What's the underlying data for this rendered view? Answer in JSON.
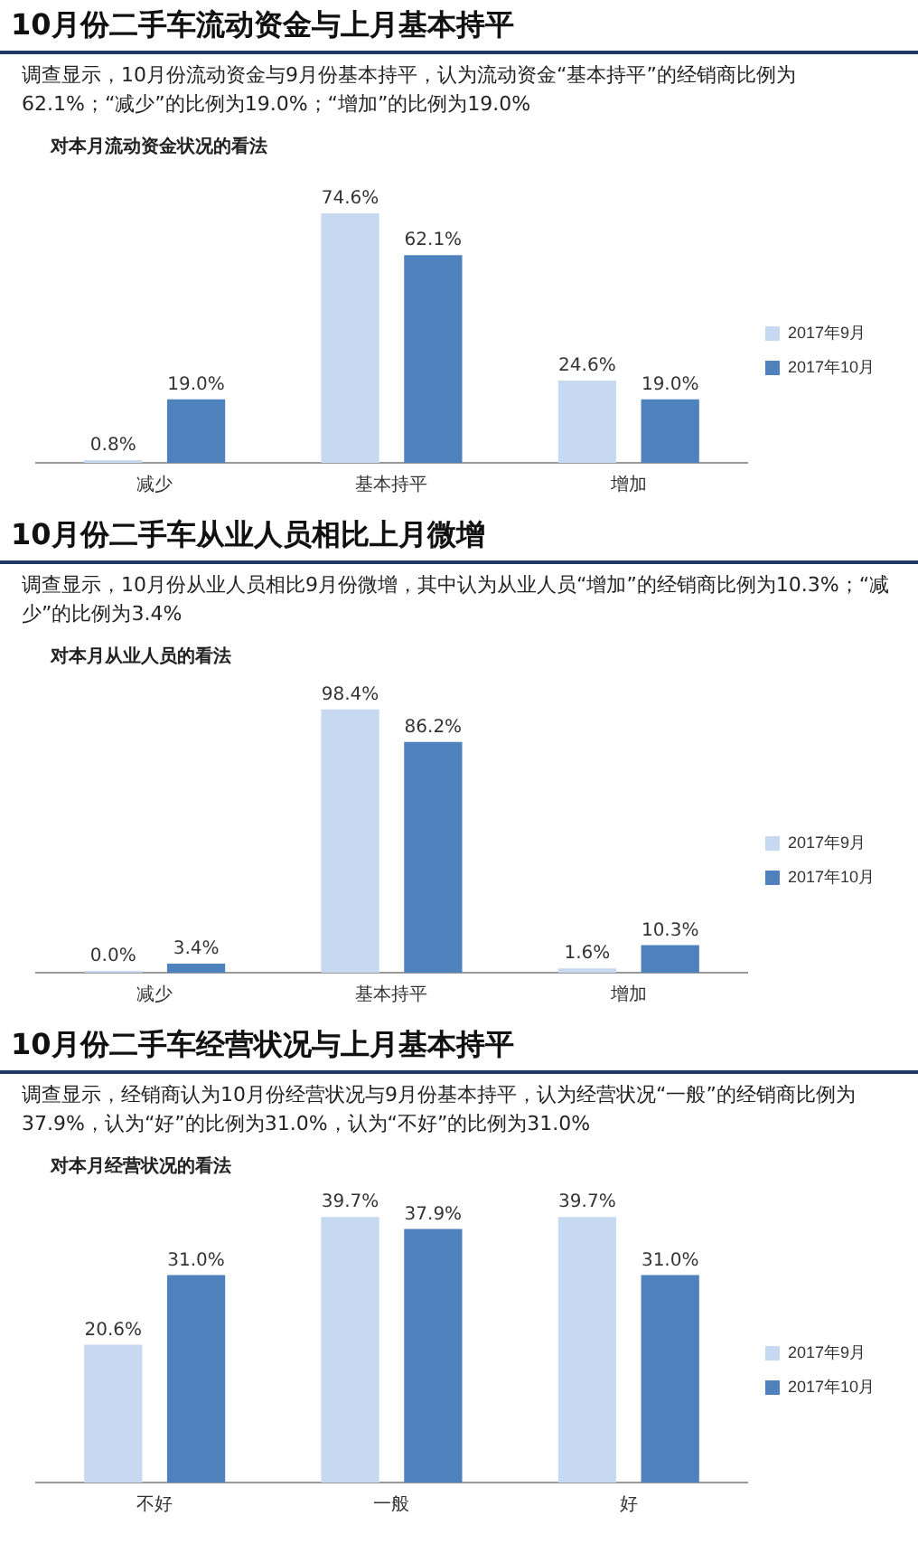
{
  "chart_data": [
    {
      "type": "bar",
      "title": "10月份二手车流动资金与上月基本持平",
      "subtitle": "调查显示，10月份流动资金与9月份基本持平，认为流动资金“基本持平”的经销商比例为62.1%；“减少”的比例为19.0%；“增加”的比例为19.0%",
      "annotations": [
        "对本月流动资金状况的看法"
      ],
      "categories": [
        "减少",
        "基本持平",
        "增加"
      ],
      "legend": "right",
      "series": [
        {
          "name": "2017年9月",
          "color": "#c6d9f1",
          "values": [
            0.8,
            74.6,
            24.6
          ],
          "value_labels": [
            "0.8%",
            "74.6%",
            "24.6%"
          ]
        },
        {
          "name": "2017年10月",
          "color": "#4f81bd",
          "values": [
            19.0,
            62.1,
            19.0
          ],
          "value_labels": [
            "19.0%",
            "62.1%",
            "19.0%"
          ]
        }
      ]
    },
    {
      "type": "bar",
      "title": "10月份二手车从业人员相比上月微增",
      "subtitle": "调查显示，10月份从业人员相比9月份微增，其中认为从业人员“增加”的经销商比例为10.3%；“减少”的比例为3.4%",
      "annotations": [
        "对本月从业人员的看法"
      ],
      "categories": [
        "减少",
        "基本持平",
        "增加"
      ],
      "legend": "right",
      "series": [
        {
          "name": "2017年9月",
          "color": "#c6d9f1",
          "values": [
            0.0,
            98.4,
            1.6
          ],
          "value_labels": [
            "0.0%",
            "98.4%",
            "1.6%"
          ]
        },
        {
          "name": "2017年10月",
          "color": "#4f81bd",
          "values": [
            3.4,
            86.2,
            10.3
          ],
          "value_labels": [
            "3.4%",
            "86.2%",
            "10.3%"
          ]
        }
      ]
    },
    {
      "type": "bar",
      "title": "10月份二手车经营状况与上月基本持平",
      "subtitle": "调查显示，经销商认为10月份经营状况与9月份基本持平，认为经营状况“一般”的经销商比例为37.9%，认为“好”的比例为31.0%，认为“不好”的比例为31.0%",
      "annotations": [
        "对本月经营状况的看法"
      ],
      "categories": [
        "不好",
        "一般",
        "好"
      ],
      "legend": "right",
      "series": [
        {
          "name": "2017年9月",
          "color": "#c6d9f1",
          "values": [
            20.6,
            39.7,
            39.7
          ],
          "value_labels": [
            "20.6%",
            "39.7%",
            "39.7%"
          ]
        },
        {
          "name": "2017年10月",
          "color": "#4f81bd",
          "values": [
            31.0,
            37.9,
            31.0
          ],
          "value_labels": [
            "31.0%",
            "37.9%",
            "31.0%"
          ]
        }
      ]
    }
  ]
}
